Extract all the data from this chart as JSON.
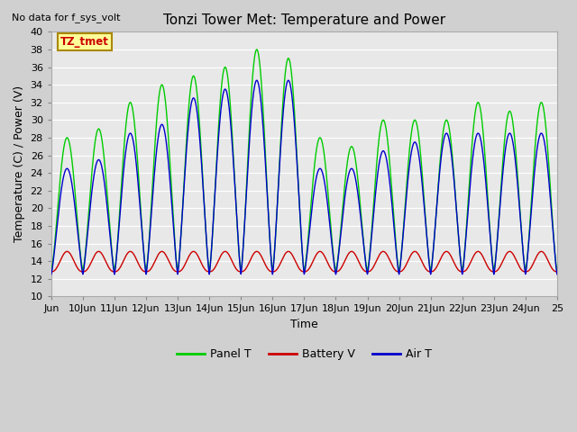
{
  "title": "Tonzi Tower Met: Temperature and Power",
  "xlabel": "Time",
  "ylabel": "Temperature (C) / Power (V)",
  "no_data_text": "No data for f_sys_volt",
  "legend_label_text": "TZ_tmet",
  "ylim": [
    10,
    40
  ],
  "yticks": [
    10,
    12,
    14,
    16,
    18,
    20,
    22,
    24,
    26,
    28,
    30,
    32,
    34,
    36,
    38,
    40
  ],
  "xtick_positions": [
    0,
    1,
    2,
    3,
    4,
    5,
    6,
    7,
    8,
    9,
    10,
    11,
    12,
    13,
    14,
    15,
    16
  ],
  "xtick_labels": [
    "Jun",
    "10Jun",
    "11Jun",
    "12Jun",
    "13Jun",
    "14Jun",
    "15Jun",
    "16Jun",
    "17Jun",
    "18Jun",
    "19Jun",
    "20Jun",
    "21Jun",
    "22Jun",
    "23Jun",
    "24Jun",
    "25"
  ],
  "xlim": [
    0,
    16
  ],
  "panel_color": "#00cc00",
  "battery_color": "#cc0000",
  "air_color": "#0000cc",
  "legend_entries": [
    "Panel T",
    "Battery V",
    "Air T"
  ],
  "panel_day_amps": [
    15,
    16,
    19,
    21,
    22,
    23,
    25,
    24,
    15,
    14,
    17,
    17,
    17,
    19,
    18,
    19
  ],
  "air_day_amps": [
    12,
    13,
    16,
    17,
    20,
    21,
    22,
    22,
    12,
    12,
    14,
    15,
    16,
    16,
    16,
    16
  ],
  "battery_base": 12.8,
  "battery_peak_amp": 2.3,
  "panel_base": 13.0,
  "air_base": 12.5
}
